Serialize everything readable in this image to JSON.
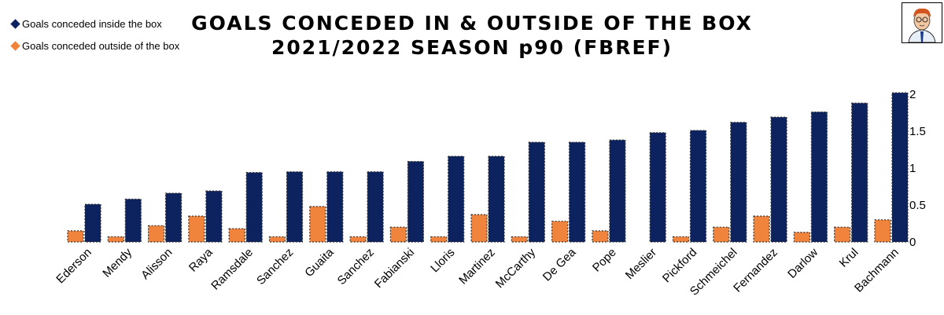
{
  "chart_data": {
    "type": "bar",
    "title": "GOALS CONCEDED IN & OUTSIDE OF THE BOX",
    "subtitle": "2021/2022 SEASON p90 (FBREF)",
    "xlabel": "",
    "ylabel": "",
    "ylim": [
      0,
      2.1
    ],
    "yticks": [
      0,
      0.5,
      1,
      1.5,
      2
    ],
    "ytick_labels": [
      "0",
      "0.5",
      "1",
      "1.5",
      "2"
    ],
    "y_axis_side": "right",
    "grid": false,
    "legend_position": "top-left",
    "categories": [
      "Ederson",
      "Mendy",
      "Alisson",
      "Raya",
      "Ramsdale",
      "Sanchez",
      "Guaita",
      "Sanchez",
      "Fabianski",
      "Lloris",
      "Martinez",
      "McCarthy",
      "De Gea",
      "Pope",
      "Meslier",
      "Pickford",
      "Schmeichel",
      "Fernandez",
      "Darlow",
      "Krul",
      "Bachmann"
    ],
    "series": [
      {
        "name": "Goals conceded outside of the box",
        "color": "#f0843c",
        "values": [
          0.15,
          0.07,
          0.22,
          0.35,
          0.18,
          0.07,
          0.48,
          0.07,
          0.2,
          0.07,
          0.37,
          0.07,
          0.28,
          0.15,
          0.0,
          0.07,
          0.2,
          0.35,
          0.13,
          0.2,
          0.3
        ]
      },
      {
        "name": "Goals conceded inside the box",
        "color": "#0d2360",
        "values": [
          0.51,
          0.58,
          0.66,
          0.69,
          0.94,
          0.95,
          0.95,
          0.95,
          1.09,
          1.16,
          1.16,
          1.35,
          1.35,
          1.38,
          1.48,
          1.51,
          1.62,
          1.69,
          1.76,
          1.88,
          2.02
        ]
      }
    ]
  },
  "avatar_icon": "cartoon-person-icon"
}
